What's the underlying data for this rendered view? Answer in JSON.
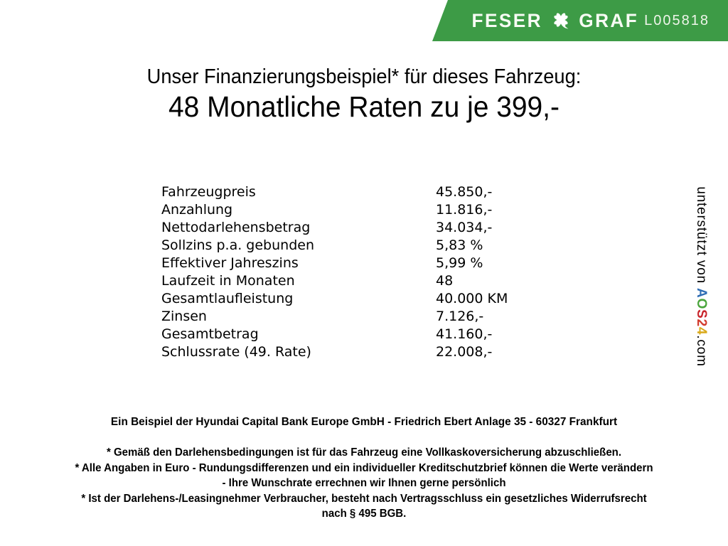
{
  "header": {
    "brand": {
      "word_left": "FESER",
      "word_right": "GRAF",
      "icon": "four-leaf-clover"
    },
    "vehicle_code": "L005818",
    "banner_color": "#3d9b46"
  },
  "title": {
    "line1": "Unser Finanzierungsbeispiel* für dieses Fahrzeug:",
    "line2": "48 Monatliche Raten zu je 399,-"
  },
  "finance_table": {
    "rows": [
      {
        "label": "Fahrzeugpreis",
        "value": "45.850,-"
      },
      {
        "label": "Anzahlung",
        "value": "11.816,-"
      },
      {
        "label": "Nettodarlehensbetrag",
        "value": "34.034,-"
      },
      {
        "label": "Sollzins p.a. gebunden",
        "value": "5,83 %"
      },
      {
        "label": "Effektiver Jahreszins",
        "value": "5,99 %"
      },
      {
        "label": "Laufzeit in Monaten",
        "value": "48"
      },
      {
        "label": "Gesamtlaufleistung",
        "value": "40.000 KM"
      },
      {
        "label": "Zinsen",
        "value": "7.126,-"
      },
      {
        "label": "Gesamtbetrag",
        "value": "41.160,-"
      },
      {
        "label": "Schlussrate (49. Rate)",
        "value": "22.008,-"
      }
    ]
  },
  "support_credit": {
    "prefix": "unterstützt von ",
    "brand_letters": [
      {
        "char": "A",
        "color": "#2f6db5"
      },
      {
        "char": "O",
        "color": "#4aa53c"
      },
      {
        "char": "S",
        "color": "#c9252c"
      },
      {
        "char": "2",
        "color": "#d23c2e"
      },
      {
        "char": "4",
        "color": "#d9a91a"
      }
    ],
    "suffix": ".com"
  },
  "footer": {
    "company_line": "Ein Beispiel der Hyundai Capital Bank Europe GmbH - Friedrich Ebert Anlage 35 - 60327 Frankfurt",
    "footnotes": [
      "* Gemäß den Darlehensbedingungen ist für das Fahrzeug eine Vollkaskoversicherung abzuschließen.",
      "* Alle Angaben in Euro - Rundungsdifferenzen und ein individueller Kreditschutzbrief können die Werte verändern",
      "- Ihre Wunschrate errechnen wir Ihnen gerne persönlich",
      "* Ist der Darlehens-/Leasingnehmer Verbraucher, besteht nach Vertragsschluss ein gesetzliches Widerrufsrecht",
      "nach § 495 BGB."
    ]
  }
}
